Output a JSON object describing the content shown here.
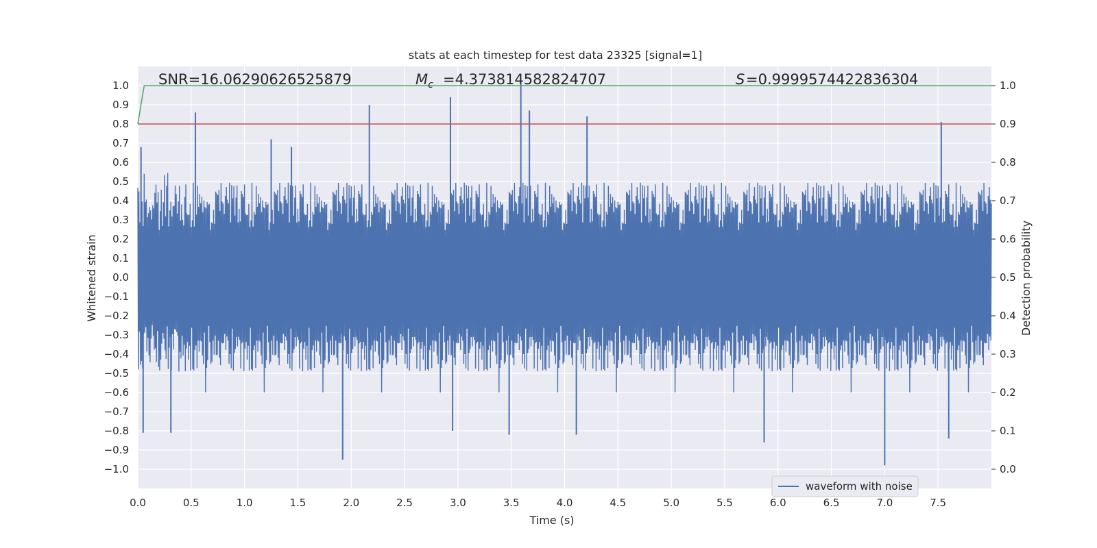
{
  "chart_data": {
    "type": "line",
    "title": "stats at each timestep for test data 23325 [signal=1]",
    "xlabel": "Time (s)",
    "ylabel": "Whitened strain",
    "ylabel_right": "Detection probability",
    "xlim": [
      0.0,
      8.0
    ],
    "ylim": [
      -1.1,
      1.1
    ],
    "ylim_right": [
      -0.05,
      1.05
    ],
    "x_ticks": [
      "0.0",
      "0.5",
      "1.0",
      "1.5",
      "2.0",
      "2.5",
      "3.0",
      "3.5",
      "4.0",
      "4.5",
      "5.0",
      "5.5",
      "6.0",
      "6.5",
      "7.0",
      "7.5"
    ],
    "y_ticks": [
      "1.0",
      "0.9",
      "0.8",
      "0.7",
      "0.6",
      "0.5",
      "0.4",
      "0.3",
      "0.2",
      "0.1",
      "0.0",
      "−0.1",
      "−0.2",
      "−0.3",
      "−0.4",
      "−0.5",
      "−0.6",
      "−0.7",
      "−0.8",
      "−0.9",
      "−1.0"
    ],
    "y_ticks_right": [
      "1.0",
      "0.9",
      "0.8",
      "0.7",
      "0.6",
      "0.5",
      "0.4",
      "0.3",
      "0.2",
      "0.1",
      "0.0"
    ],
    "grid": true,
    "legend": {
      "entries": [
        "waveform with noise"
      ],
      "location": "bottom-right"
    },
    "annotations": {
      "snr": "SNR=16.06290626525879",
      "mc": "=4.373814582824707",
      "s": "=0.9999574422836304"
    },
    "series": [
      {
        "name": "waveform with noise",
        "color": "#4c72b0",
        "peaks": [
          {
            "x": 0.03,
            "y": 0.68
          },
          {
            "x": 0.54,
            "y": 0.86
          },
          {
            "x": 1.25,
            "y": 0.72
          },
          {
            "x": 1.44,
            "y": 0.68
          },
          {
            "x": 2.17,
            "y": 0.9
          },
          {
            "x": 2.93,
            "y": 0.94
          },
          {
            "x": 3.59,
            "y": 1.01
          },
          {
            "x": 3.67,
            "y": 0.87
          },
          {
            "x": 4.21,
            "y": 0.84
          },
          {
            "x": 7.53,
            "y": 0.81
          }
        ],
        "troughs": [
          {
            "x": 0.05,
            "y": -0.81
          },
          {
            "x": 0.31,
            "y": -0.81
          },
          {
            "x": 1.92,
            "y": -0.95
          },
          {
            "x": 2.95,
            "y": -0.8
          },
          {
            "x": 3.48,
            "y": -0.82
          },
          {
            "x": 4.11,
            "y": -0.82
          },
          {
            "x": 5.87,
            "y": -0.86
          },
          {
            "x": 7.0,
            "y": -0.98
          },
          {
            "x": 7.6,
            "y": -0.84
          }
        ],
        "typical_amplitude": 0.45
      },
      {
        "color": "#55a868",
        "axis": "right",
        "x": [
          0.0,
          0.06,
          0.1,
          8.0
        ],
        "y": [
          0.9,
          1.0,
          1.0,
          1.0
        ]
      },
      {
        "color": "#c44e52",
        "axis": "right",
        "x": [
          0.0,
          8.0
        ],
        "y": [
          0.9,
          0.9
        ]
      }
    ],
    "style": {
      "background": "#eaeaf2",
      "grid_color": "#ffffff"
    }
  }
}
